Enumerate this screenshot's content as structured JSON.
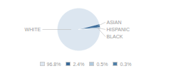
{
  "chart_data": {
    "type": "pie",
    "categories": [
      "WHITE",
      "ASIAN",
      "HISPANIC",
      "BLACK"
    ],
    "values": [
      96.8,
      2.4,
      0.5,
      0.3
    ],
    "value_labels": [
      "96.8%",
      "2.4%",
      "0.5%",
      "0.3%"
    ],
    "colors": [
      "#dce6f0",
      "#3a6b9a",
      "#b0c8dc",
      "#4e7fa8"
    ],
    "legend": "bottom"
  }
}
